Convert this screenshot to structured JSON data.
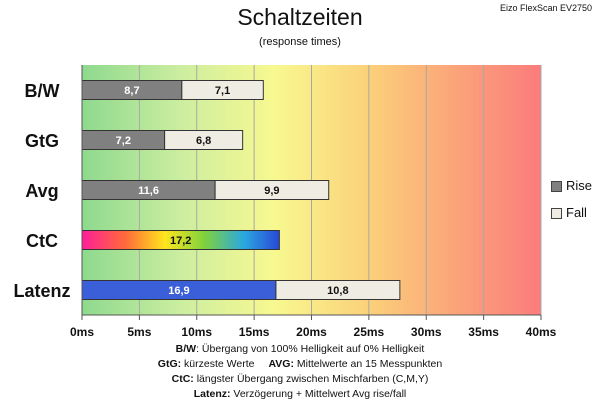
{
  "monitor": "Eizo FlexScan EV2750",
  "chart_data": {
    "type": "bar",
    "orientation": "horizontal",
    "stacked": true,
    "title": "Schaltzeiten",
    "subtitle": "(response times)",
    "categories": [
      "B/W",
      "GtG",
      "Avg",
      "CtC",
      "Latenz"
    ],
    "series": [
      {
        "name": "Rise",
        "values": [
          8.7,
          7.2,
          11.6,
          17.2,
          16.9
        ],
        "color": "#808080"
      },
      {
        "name": "Fall",
        "values": [
          7.1,
          6.8,
          9.9,
          null,
          10.8
        ],
        "color": "#efece3"
      }
    ],
    "segment_labels": [
      [
        "8,7",
        "7,1"
      ],
      [
        "7,2",
        "6,8"
      ],
      [
        "11,6",
        "9,9"
      ],
      [
        "17,2",
        ""
      ],
      [
        "16,9",
        "10,8"
      ]
    ],
    "special_colors": {
      "CtC": "rainbow",
      "Latenz_rise": "#3a5fd8"
    },
    "xlim": [
      0,
      40
    ],
    "xticks": [
      "0ms",
      "5ms",
      "10ms",
      "15ms",
      "20ms",
      "25ms",
      "30ms",
      "35ms",
      "40ms"
    ],
    "background": "gradient green-yellow-red",
    "grid": true,
    "legend_position": "right"
  },
  "legend": {
    "rise": "Rise",
    "fall": "Fall"
  },
  "notes": {
    "bw_key": "B/W",
    "bw_text": ":  Übergang von 100% Helligkeit auf 0% Helligkeit",
    "gtg_key": "GtG:",
    "gtg_text": " kürzeste  Werte",
    "avg_key": "AVG:",
    "avg_text": " Mittelwerte  an 15 Messpunkten",
    "ctc_key": "CtC:",
    "ctc_text": " längster Übergang  zwischen Mischfarben (C,M,Y)",
    "lat_key": "Latenz:",
    "lat_text": " Verzögerung  + Mittelwert  Avg rise/fall"
  }
}
